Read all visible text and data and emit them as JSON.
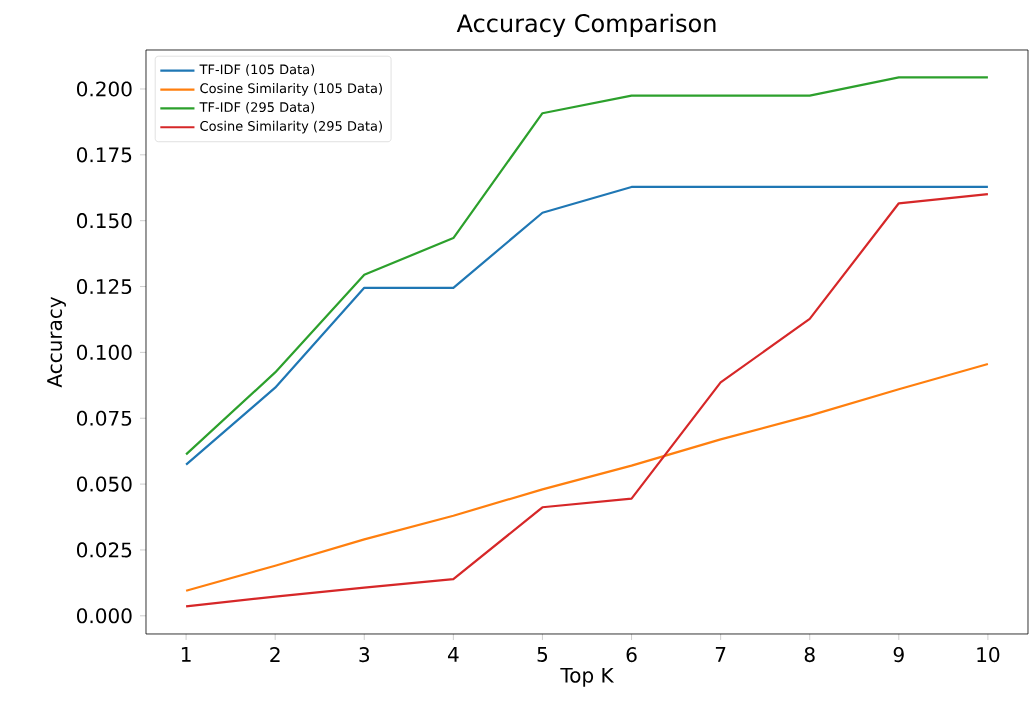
{
  "chart_data": {
    "type": "line",
    "title": "Accuracy Comparison",
    "xlabel": "Top K",
    "ylabel": "Accuracy",
    "x": [
      1,
      2,
      3,
      4,
      5,
      6,
      7,
      8,
      9,
      10
    ],
    "series": [
      {
        "name": "TF-IDF (105 Data)",
        "color": "#1f77b4",
        "values": [
          0.0574,
          0.0866,
          0.1245,
          0.1245,
          0.153,
          0.1628,
          0.1628,
          0.1628,
          0.1628,
          0.1628
        ]
      },
      {
        "name": "Cosine Similarity (105 Data)",
        "color": "#ff7f0e",
        "values": [
          0.0095,
          0.019,
          0.029,
          0.038,
          0.048,
          0.057,
          0.067,
          0.076,
          0.086,
          0.0956
        ]
      },
      {
        "name": "TF-IDF (295 Data)",
        "color": "#2ca02c",
        "values": [
          0.0613,
          0.0924,
          0.1295,
          0.1434,
          0.1908,
          0.1975,
          0.1975,
          0.1975,
          0.2044,
          0.2044
        ]
      },
      {
        "name": "Cosine Similarity (295 Data)",
        "color": "#d62728",
        "values": [
          0.0036,
          0.0073,
          0.0107,
          0.0139,
          0.0412,
          0.0445,
          0.0886,
          0.1127,
          0.1566,
          0.1601
        ]
      }
    ],
    "xlim": [
      0.55,
      10.45
    ],
    "ylim": [
      -0.0069,
      0.2148
    ],
    "xticks": [
      1,
      2,
      3,
      4,
      5,
      6,
      7,
      8,
      9,
      10
    ],
    "yticks": [
      {
        "value": 0,
        "label": "0.000"
      },
      {
        "value": 0.025,
        "label": "0.025"
      },
      {
        "value": 0.05,
        "label": "0.050"
      },
      {
        "value": 0.075,
        "label": "0.075"
      },
      {
        "value": 0.1,
        "label": "0.100"
      },
      {
        "value": 0.125,
        "label": "0.125"
      },
      {
        "value": 0.15,
        "label": "0.150"
      },
      {
        "value": 0.175,
        "label": "0.175"
      },
      {
        "value": 0.2,
        "label": "0.200"
      }
    ],
    "legend": "top left",
    "grid": false,
    "marker": "none",
    "line_style": "solid"
  }
}
